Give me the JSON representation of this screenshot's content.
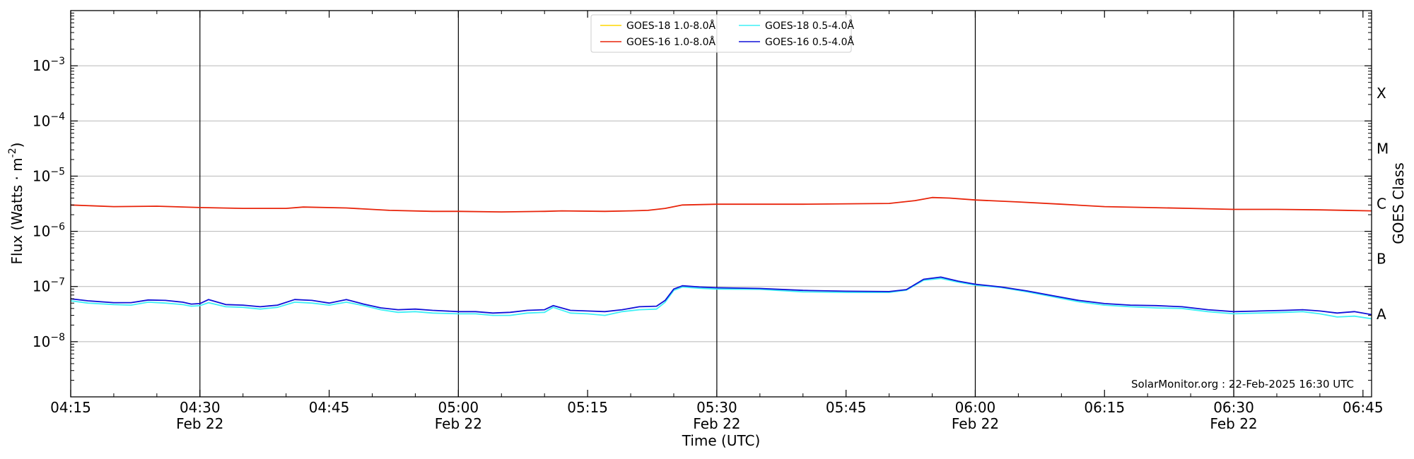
{
  "chart_data": {
    "type": "line",
    "xlabel": "Time (UTC)",
    "ylabel": "Flux (Watts · m",
    "ylabel_sup": "-2",
    "ylabel_close": ")",
    "y2label": "GOES Class",
    "yscale": "log",
    "xlim": [
      "04:15",
      "06:46"
    ],
    "ylim": [
      1e-09,
      0.01
    ],
    "grid": "horizontal",
    "legend_position": "top-center",
    "x_ticks": [
      {
        "time": "04:15",
        "label": "04:15",
        "sublabel": ""
      },
      {
        "time": "04:30",
        "label": "04:30",
        "sublabel": "Feb 22"
      },
      {
        "time": "04:45",
        "label": "04:45",
        "sublabel": ""
      },
      {
        "time": "05:00",
        "label": "05:00",
        "sublabel": "Feb 22"
      },
      {
        "time": "05:15",
        "label": "05:15",
        "sublabel": ""
      },
      {
        "time": "05:30",
        "label": "05:30",
        "sublabel": "Feb 22"
      },
      {
        "time": "05:45",
        "label": "05:45",
        "sublabel": ""
      },
      {
        "time": "06:00",
        "label": "06:00",
        "sublabel": "Feb 22"
      },
      {
        "time": "06:15",
        "label": "06:15",
        "sublabel": ""
      },
      {
        "time": "06:30",
        "label": "06:30",
        "sublabel": "Feb 22"
      },
      {
        "time": "06:45",
        "label": "06:45",
        "sublabel": ""
      }
    ],
    "vertical_lines": [
      "04:30",
      "05:00",
      "05:30",
      "06:00",
      "06:30"
    ],
    "y_ticks": [
      {
        "exp": -8,
        "label": "10",
        "sup": "−8"
      },
      {
        "exp": -7,
        "label": "10",
        "sup": "−7"
      },
      {
        "exp": -6,
        "label": "10",
        "sup": "−6"
      },
      {
        "exp": -5,
        "label": "10",
        "sup": "−5"
      },
      {
        "exp": -4,
        "label": "10",
        "sup": "−4"
      },
      {
        "exp": -3,
        "label": "10",
        "sup": "−3"
      }
    ],
    "goes_classes": [
      {
        "label": "A",
        "exp": -7.5
      },
      {
        "label": "B",
        "exp": -6.5
      },
      {
        "label": "C",
        "exp": -5.5
      },
      {
        "label": "M",
        "exp": -4.5
      },
      {
        "label": "X",
        "exp": -3.5
      }
    ],
    "legend": [
      {
        "name": "GOES-18 1.0-8.0Å",
        "color": "#FFD700",
        "col": 0,
        "row": 0
      },
      {
        "name": "GOES-16 1.0-8.0Å",
        "color": "#E8240A",
        "col": 0,
        "row": 1
      },
      {
        "name": "GOES-18 0.5-4.0Å",
        "color": "#3FF0F5",
        "col": 1,
        "row": 0
      },
      {
        "name": "GOES-16 0.5-4.0Å",
        "color": "#1010D8",
        "col": 1,
        "row": 1
      }
    ],
    "credit": "SolarMonitor.org : 22-Feb-2025 16:30 UTC",
    "series": [
      {
        "name": "GOES-16 1.0-8.0Å",
        "color": "#E8240A",
        "x": [
          "04:15",
          "04:20",
          "04:25",
          "04:30",
          "04:35",
          "04:40",
          "04:42",
          "04:47",
          "04:52",
          "04:57",
          "05:00",
          "05:05",
          "05:10",
          "05:12",
          "05:17",
          "05:20",
          "05:22",
          "05:24",
          "05:26",
          "05:30",
          "05:40",
          "05:50",
          "05:53",
          "05:55",
          "05:57",
          "06:00",
          "06:05",
          "06:10",
          "06:15",
          "06:20",
          "06:25",
          "06:30",
          "06:35",
          "06:40",
          "06:46"
        ],
        "values": [
          3e-06,
          2.8e-06,
          2.85e-06,
          2.7e-06,
          2.6e-06,
          2.6e-06,
          2.75e-06,
          2.65e-06,
          2.4e-06,
          2.3e-06,
          2.3e-06,
          2.25e-06,
          2.3e-06,
          2.35e-06,
          2.3e-06,
          2.35e-06,
          2.4e-06,
          2.6e-06,
          3e-06,
          3.1e-06,
          3.1e-06,
          3.2e-06,
          3.6e-06,
          4.1e-06,
          4e-06,
          3.7e-06,
          3.4e-06,
          3.1e-06,
          2.8e-06,
          2.7e-06,
          2.6e-06,
          2.5e-06,
          2.5e-06,
          2.45e-06,
          2.35e-06
        ]
      },
      {
        "name": "GOES-18 0.5-4.0Å",
        "color": "#3FF0F5",
        "x": [
          "04:15",
          "04:17",
          "04:20",
          "04:22",
          "04:24",
          "04:26",
          "04:28",
          "04:29",
          "04:30",
          "04:31",
          "04:33",
          "04:35",
          "04:37",
          "04:39",
          "04:41",
          "04:43",
          "04:45",
          "04:47",
          "04:49",
          "04:51",
          "04:53",
          "04:55",
          "04:57",
          "05:00",
          "05:02",
          "05:04",
          "05:06",
          "05:08",
          "05:10",
          "05:11",
          "05:13",
          "05:15",
          "05:17",
          "05:19",
          "05:21",
          "05:23",
          "05:24",
          "05:25",
          "05:26",
          "05:28",
          "05:30",
          "05:35",
          "05:40",
          "05:45",
          "05:50",
          "05:52",
          "05:54",
          "05:56",
          "05:58",
          "06:00",
          "06:03",
          "06:06",
          "06:09",
          "06:12",
          "06:15",
          "06:18",
          "06:21",
          "06:24",
          "06:27",
          "06:30",
          "06:33",
          "06:36",
          "06:38",
          "06:40",
          "06:42",
          "06:44",
          "06:46"
        ],
        "values": [
          5.5e-08,
          5e-08,
          4.7e-08,
          4.6e-08,
          5.2e-08,
          5e-08,
          4.7e-08,
          4.4e-08,
          4.5e-08,
          5.1e-08,
          4.3e-08,
          4.2e-08,
          3.9e-08,
          4.2e-08,
          5.2e-08,
          5e-08,
          4.6e-08,
          5.2e-08,
          4.5e-08,
          3.8e-08,
          3.4e-08,
          3.5e-08,
          3.3e-08,
          3.2e-08,
          3.2e-08,
          3e-08,
          3e-08,
          3.3e-08,
          3.4e-08,
          4.2e-08,
          3.3e-08,
          3.2e-08,
          3e-08,
          3.5e-08,
          3.8e-08,
          3.9e-08,
          5.2e-08,
          8.5e-08,
          9.8e-08,
          9.3e-08,
          9e-08,
          8.9e-08,
          8e-08,
          7.8e-08,
          7.8e-08,
          8.6e-08,
          1.3e-07,
          1.4e-07,
          1.2e-07,
          1.06e-07,
          9.6e-08,
          8e-08,
          6.5e-08,
          5.3e-08,
          4.6e-08,
          4.3e-08,
          4.1e-08,
          4e-08,
          3.5e-08,
          3.2e-08,
          3.3e-08,
          3.4e-08,
          3.5e-08,
          3.2e-08,
          2.8e-08,
          2.9e-08,
          2.6e-08
        ]
      },
      {
        "name": "GOES-16 0.5-4.0Å",
        "color": "#1010D8",
        "x": [
          "04:15",
          "04:17",
          "04:20",
          "04:22",
          "04:24",
          "04:26",
          "04:28",
          "04:29",
          "04:30",
          "04:31",
          "04:33",
          "04:35",
          "04:37",
          "04:39",
          "04:41",
          "04:43",
          "04:45",
          "04:47",
          "04:49",
          "04:51",
          "04:53",
          "04:55",
          "04:57",
          "05:00",
          "05:02",
          "05:04",
          "05:06",
          "05:08",
          "05:10",
          "05:11",
          "05:13",
          "05:15",
          "05:17",
          "05:19",
          "05:21",
          "05:23",
          "05:24",
          "05:25",
          "05:26",
          "05:28",
          "05:30",
          "05:35",
          "05:40",
          "05:45",
          "05:50",
          "05:52",
          "05:54",
          "05:56",
          "05:58",
          "06:00",
          "06:03",
          "06:06",
          "06:09",
          "06:12",
          "06:15",
          "06:18",
          "06:21",
          "06:24",
          "06:27",
          "06:30",
          "06:33",
          "06:36",
          "06:38",
          "06:40",
          "06:42",
          "06:44",
          "06:46"
        ],
        "values": [
          6e-08,
          5.5e-08,
          5.1e-08,
          5.1e-08,
          5.7e-08,
          5.6e-08,
          5.2e-08,
          4.8e-08,
          4.9e-08,
          5.8e-08,
          4.7e-08,
          4.6e-08,
          4.3e-08,
          4.6e-08,
          5.8e-08,
          5.6e-08,
          5e-08,
          5.8e-08,
          4.8e-08,
          4.1e-08,
          3.8e-08,
          3.9e-08,
          3.7e-08,
          3.5e-08,
          3.5e-08,
          3.3e-08,
          3.4e-08,
          3.7e-08,
          3.8e-08,
          4.5e-08,
          3.7e-08,
          3.6e-08,
          3.5e-08,
          3.8e-08,
          4.3e-08,
          4.4e-08,
          5.6e-08,
          9e-08,
          1.03e-07,
          9.8e-08,
          9.5e-08,
          9.2e-08,
          8.5e-08,
          8.2e-08,
          8.1e-08,
          8.8e-08,
          1.35e-07,
          1.48e-07,
          1.25e-07,
          1.1e-07,
          9.8e-08,
          8.3e-08,
          6.8e-08,
          5.6e-08,
          4.9e-08,
          4.6e-08,
          4.5e-08,
          4.3e-08,
          3.8e-08,
          3.5e-08,
          3.6e-08,
          3.7e-08,
          3.8e-08,
          3.6e-08,
          3.3e-08,
          3.5e-08,
          3.1e-08
        ]
      }
    ]
  }
}
